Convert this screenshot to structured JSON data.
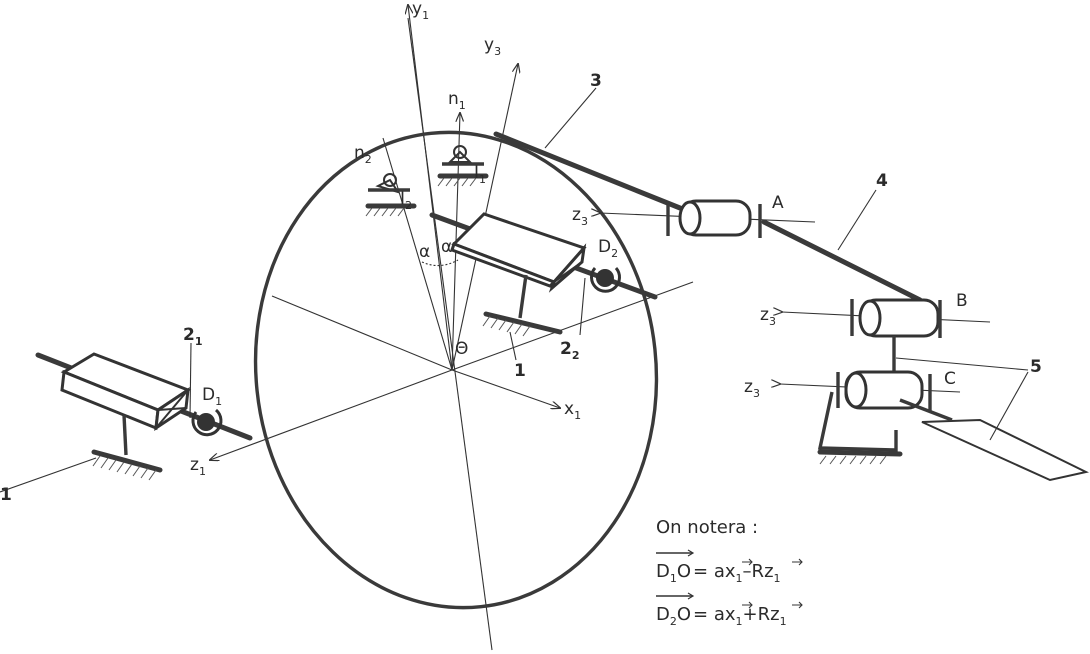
{
  "axes": {
    "y1": {
      "main": "y",
      "sub": "1"
    },
    "y3": {
      "main": "y",
      "sub": "3"
    },
    "x1": {
      "main": "x",
      "sub": "1"
    },
    "z1": {
      "main": "z",
      "sub": "1"
    },
    "n1": {
      "main": "n",
      "sub": "1"
    },
    "n2": {
      "main": "n",
      "sub": "2"
    },
    "z3_a": {
      "main": "z",
      "sub": "3"
    },
    "z3_b": {
      "main": "z",
      "sub": "3"
    },
    "z3_c": {
      "main": "z",
      "sub": "3"
    }
  },
  "points": {
    "I1": {
      "main": "I",
      "sub": "1"
    },
    "I2": {
      "main": "I",
      "sub": "2"
    },
    "D1": {
      "main": "D",
      "sub": "1"
    },
    "D2": {
      "main": "D",
      "sub": "2"
    },
    "O": "Θ",
    "A": "A",
    "B": "B",
    "C": "C"
  },
  "angles": {
    "alpha_left": "α",
    "alpha_right": "α"
  },
  "part_labels": {
    "p3": "3",
    "p4": "4",
    "p5": "5",
    "p1_left": "1",
    "p1_center": "1",
    "p2_1": {
      "main": "2",
      "sub": "1"
    },
    "p2_2": {
      "main": "2",
      "sub": "2"
    }
  },
  "note": {
    "heading": "On notera :",
    "eq1": {
      "lhs": "D",
      "lhs_sub": "1",
      "lhs_end": "O",
      "rhs_a": "= a",
      "x": "x",
      "sub1": "1",
      "op": "–R",
      "z": "z",
      "sub2": "1"
    },
    "eq2": {
      "lhs": "D",
      "lhs_sub": "2",
      "lhs_end": "O",
      "rhs_a": "= a",
      "x": "x",
      "sub1": "1",
      "op": "+R",
      "z": "z",
      "sub2": "1"
    }
  }
}
